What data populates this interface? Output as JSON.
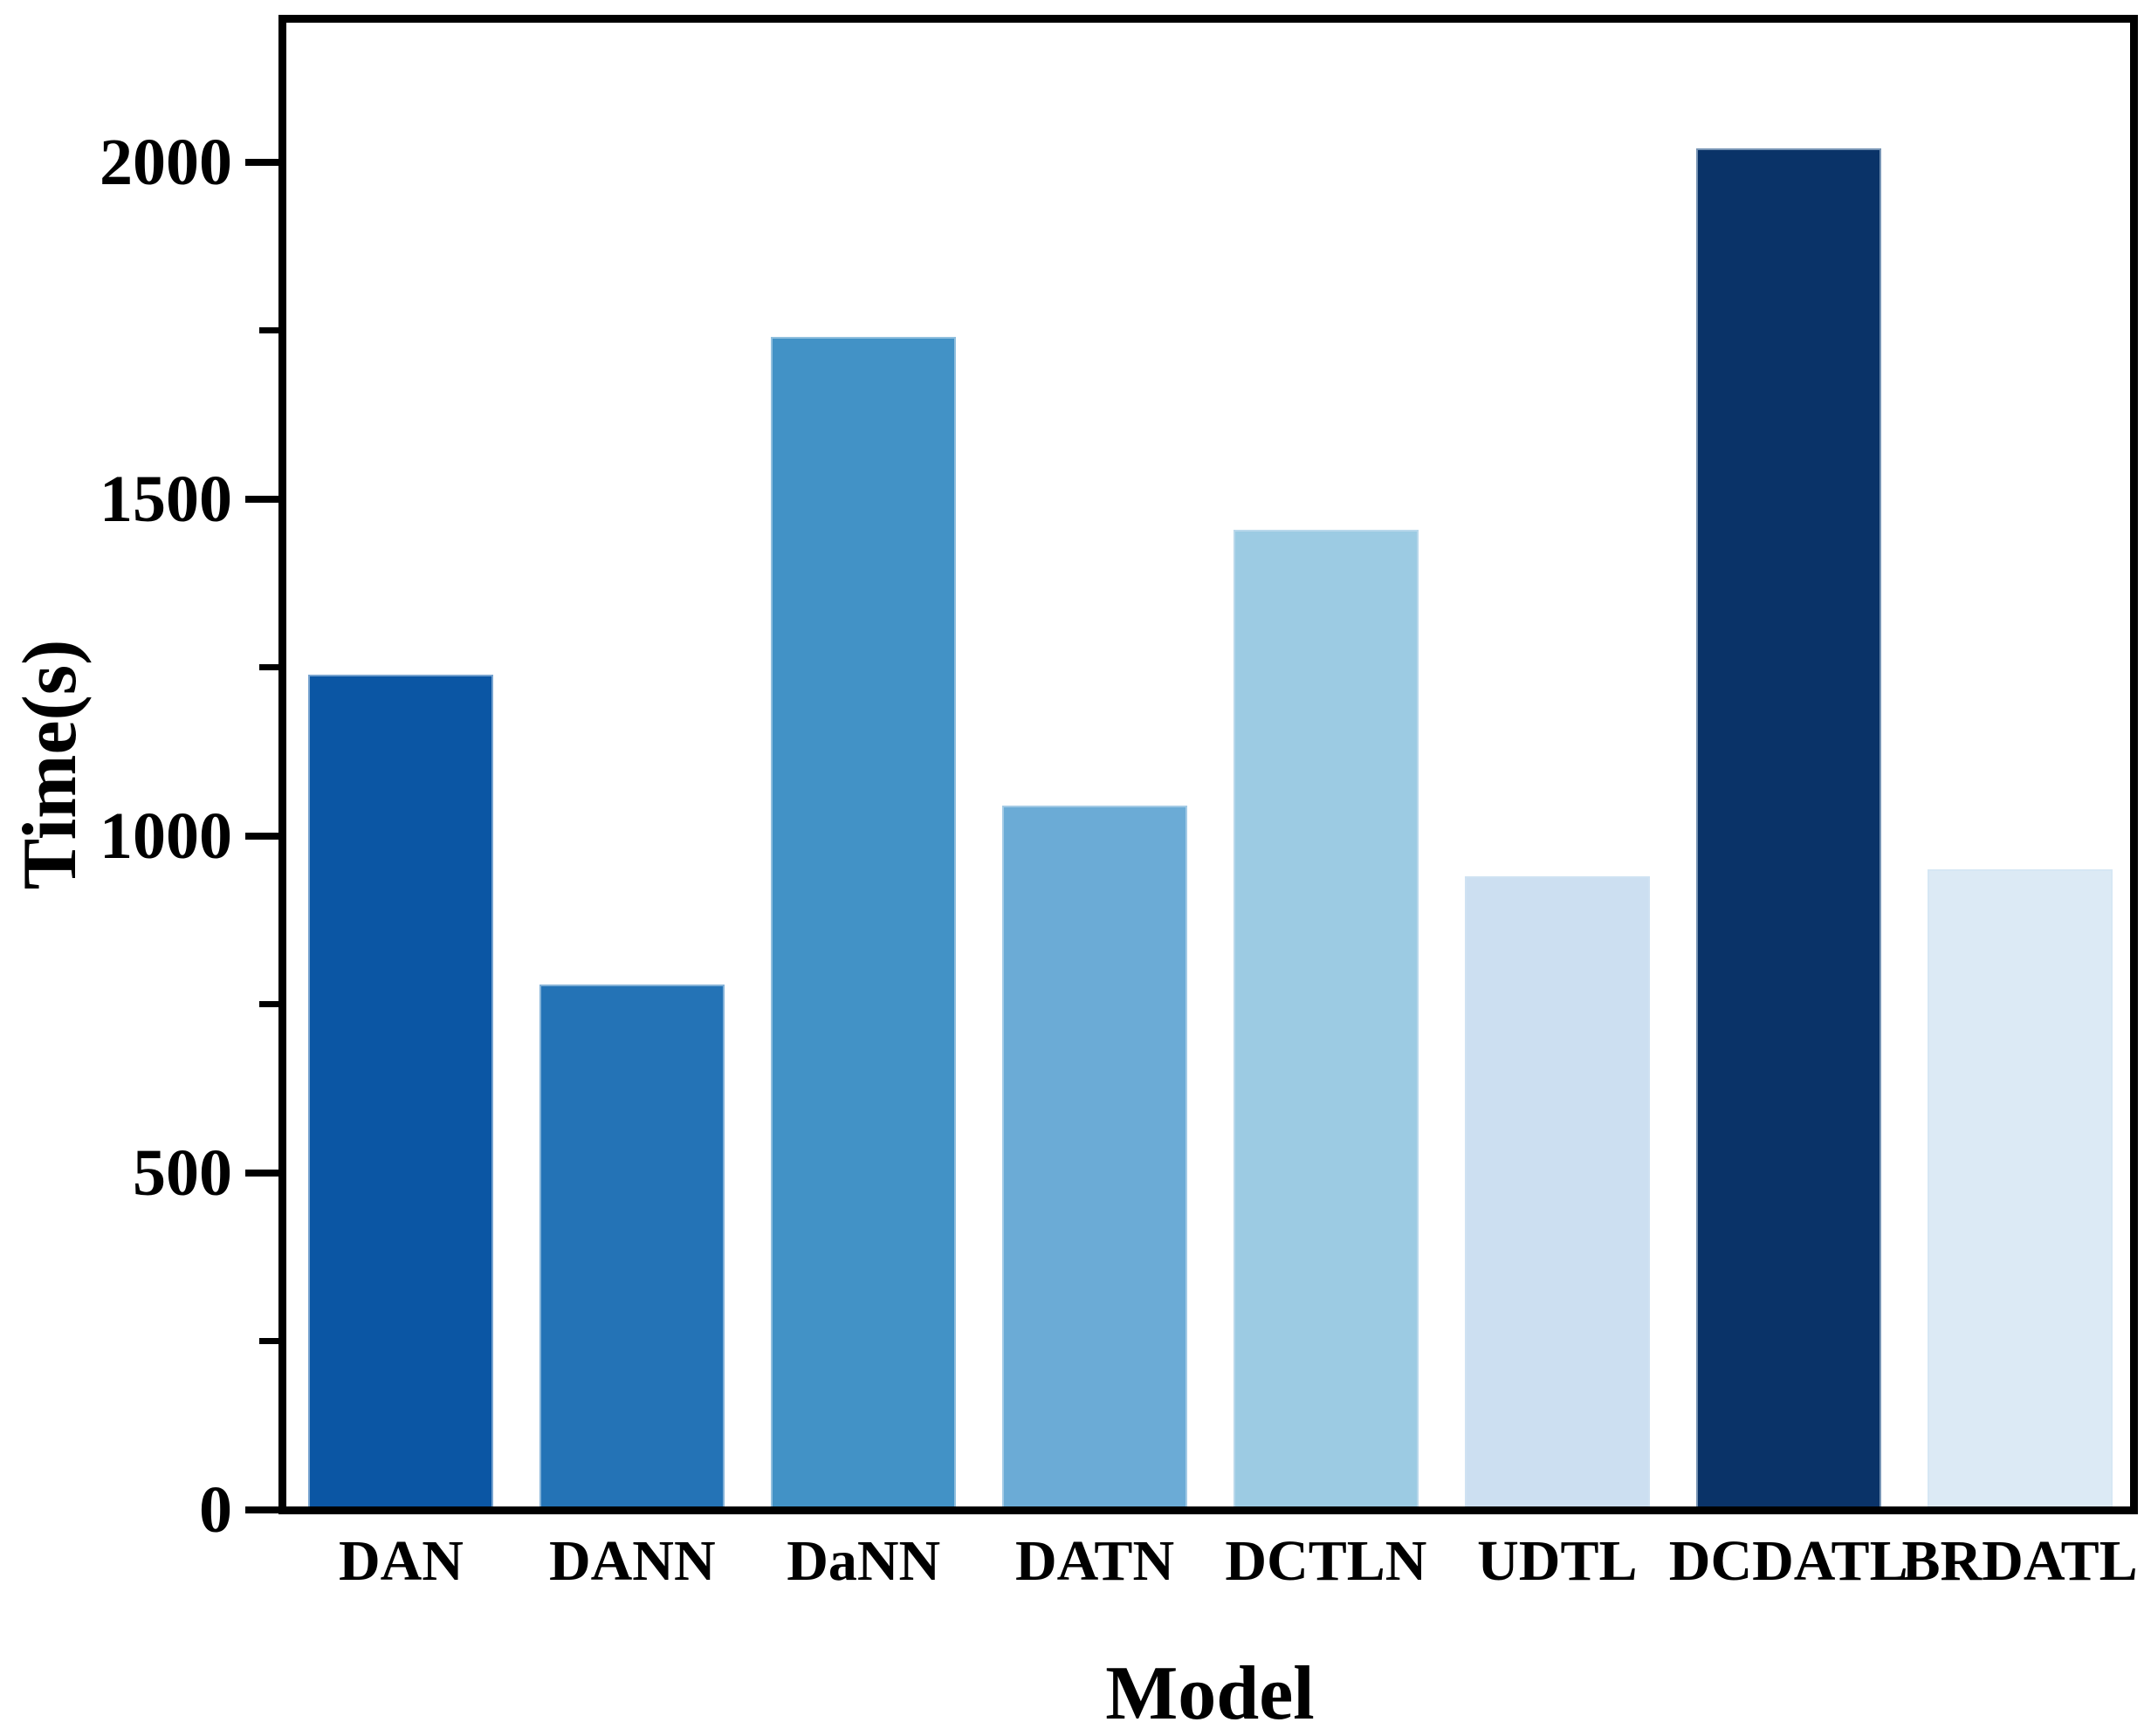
{
  "chart_data": {
    "type": "bar",
    "title": "",
    "xlabel": "Model",
    "ylabel": "Time(s)",
    "categories": [
      "DAN",
      "DANN",
      "DaNN",
      "DATN",
      "DCTLN",
      "UDTL",
      "DCDATL",
      "BRDATL"
    ],
    "values": [
      1240,
      780,
      1740,
      1045,
      1455,
      940,
      2020,
      950
    ],
    "bar_colors": [
      "#0B56A4",
      "#2473B6",
      "#4292C6",
      "#6BABD6",
      "#9CCBE3",
      "#CCDFF1",
      "#0A3368",
      "#DCEAF5"
    ],
    "ylim": [
      0,
      2212
    ],
    "yticks_major": [
      0,
      500,
      1000,
      1500,
      2000
    ],
    "yticks_minor": [
      250,
      750,
      1250,
      1750
    ],
    "bar_width_fraction": 0.8,
    "grid": false,
    "legend_position": "none",
    "axis_color": "#000000",
    "background_color": "#FFFFFF"
  }
}
